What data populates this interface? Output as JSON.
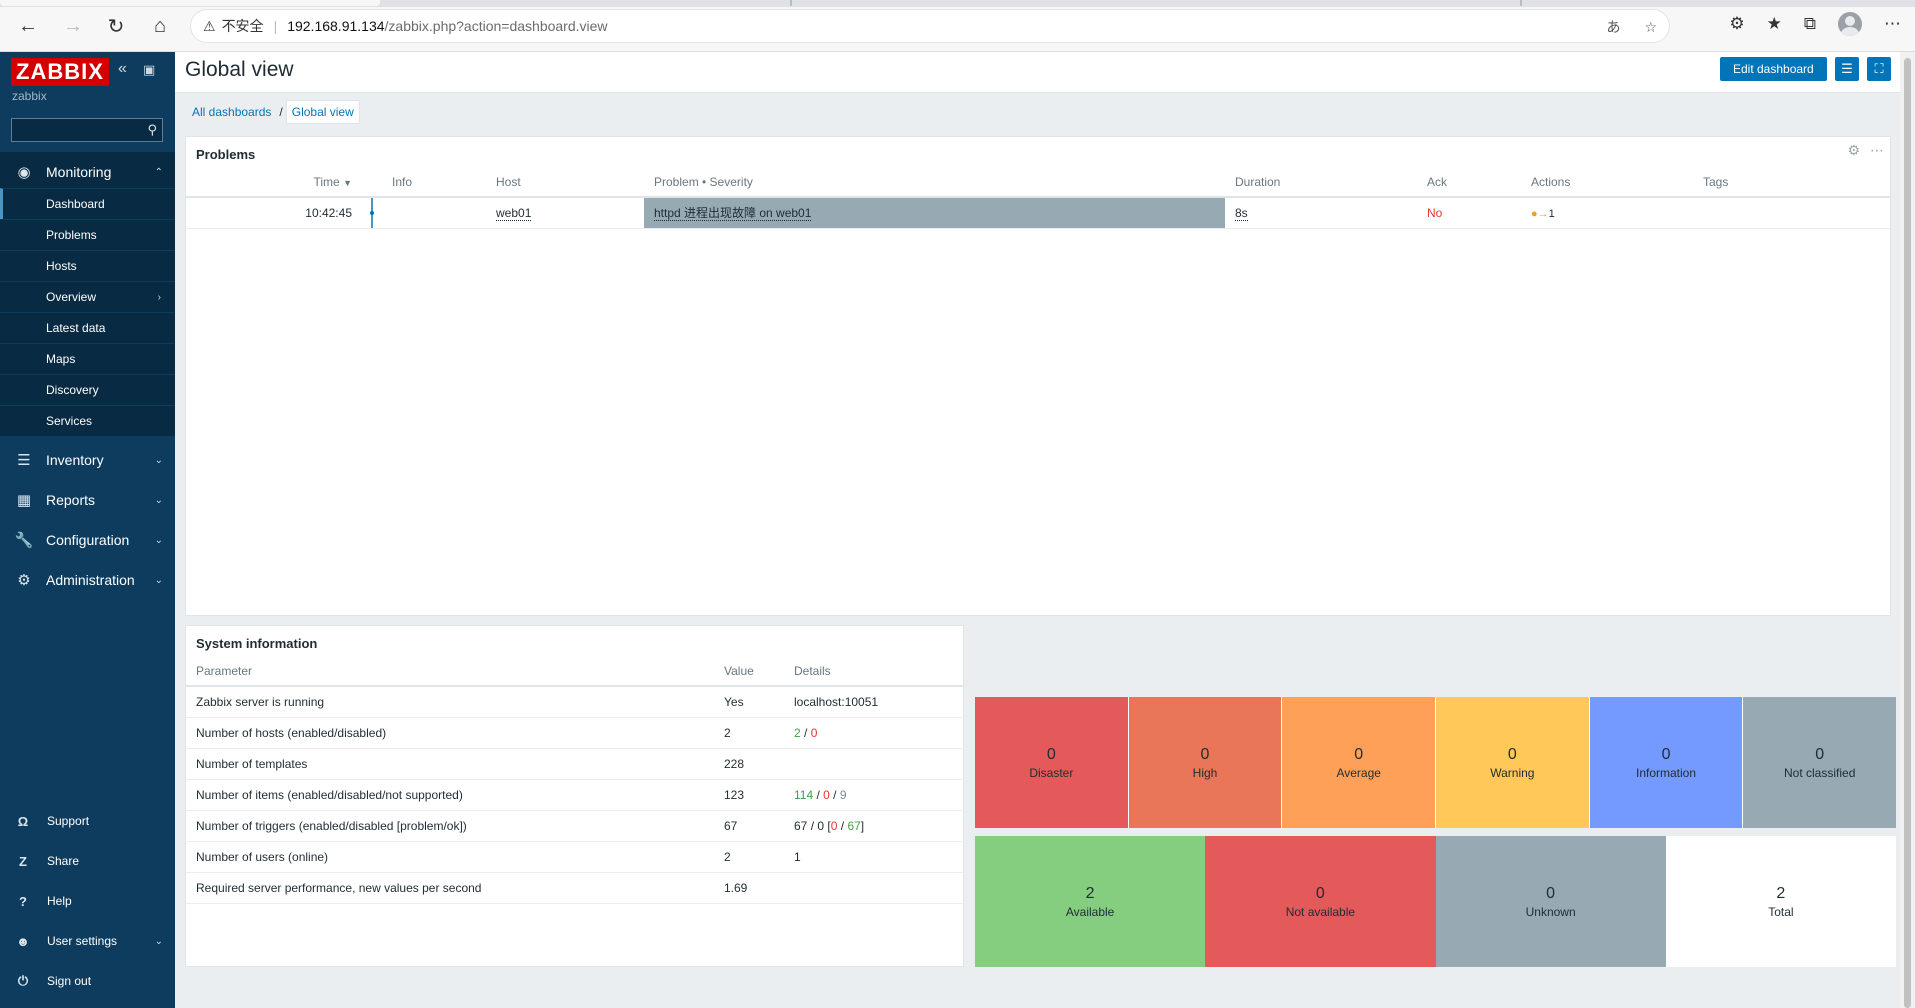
{
  "browser": {
    "security_warning": "不安全",
    "url_host": "192.168.91.134",
    "url_path": "/zabbix.php?action=dashboard.view"
  },
  "sidebar": {
    "logo": "ZABBIX",
    "server_name": "zabbix",
    "search_placeholder": "",
    "menu": [
      {
        "label": "Monitoring",
        "icon": "eye-icon"
      },
      {
        "label": "Inventory",
        "icon": "list-icon"
      },
      {
        "label": "Reports",
        "icon": "bar-chart-icon"
      },
      {
        "label": "Configuration",
        "icon": "wrench-icon"
      },
      {
        "label": "Administration",
        "icon": "gear-box-icon"
      }
    ],
    "monitoring_items": [
      "Dashboard",
      "Problems",
      "Hosts",
      "Overview",
      "Latest data",
      "Maps",
      "Discovery",
      "Services"
    ],
    "bottom": [
      {
        "label": "Support",
        "icon": "headset-icon"
      },
      {
        "label": "Share",
        "icon": "share-icon"
      },
      {
        "label": "Help",
        "icon": "help-icon"
      },
      {
        "label": "User settings",
        "icon": "user-icon"
      },
      {
        "label": "Sign out",
        "icon": "power-icon"
      }
    ]
  },
  "header": {
    "title": "Global view",
    "edit_button": "Edit dashboard"
  },
  "breadcrumbs": {
    "all": "All dashboards",
    "current": "Global view"
  },
  "problems_widget": {
    "title": "Problems",
    "columns": {
      "time": "Time",
      "info": "Info",
      "host": "Host",
      "problem": "Problem • Severity",
      "duration": "Duration",
      "ack": "Ack",
      "actions": "Actions",
      "tags": "Tags"
    },
    "rows": [
      {
        "time": "10:42:45",
        "info": "",
        "host": "web01",
        "problem": "httpd 进程出现故障 on web01",
        "duration": "8s",
        "ack": "No",
        "actions": "1",
        "tags": ""
      }
    ]
  },
  "sysinfo_widget": {
    "title": "System information",
    "columns": {
      "parameter": "Parameter",
      "value": "Value",
      "details": "Details"
    },
    "rows": [
      {
        "parameter": "Zabbix server is running",
        "value": "Yes",
        "details": "localhost:10051"
      },
      {
        "parameter": "Number of hosts (enabled/disabled)",
        "value": "2",
        "d1": "2",
        "d2": "0"
      },
      {
        "parameter": "Number of templates",
        "value": "228",
        "details": ""
      },
      {
        "parameter": "Number of items (enabled/disabled/not supported)",
        "value": "123",
        "d1": "114",
        "d2": "0",
        "d3": "9"
      },
      {
        "parameter": "Number of triggers (enabled/disabled [problem/ok])",
        "value": "67",
        "d1": "67",
        "d2": "0",
        "d3": "0",
        "d4": "67"
      },
      {
        "parameter": "Number of users (online)",
        "value": "2",
        "details": "1"
      },
      {
        "parameter": "Required server performance, new values per second",
        "value": "1.69",
        "details": ""
      }
    ]
  },
  "severity": [
    {
      "count": "0",
      "label": "Disaster",
      "color": "#e45959"
    },
    {
      "count": "0",
      "label": "High",
      "color": "#e97659"
    },
    {
      "count": "0",
      "label": "Average",
      "color": "#ffa059"
    },
    {
      "count": "0",
      "label": "Warning",
      "color": "#ffc859"
    },
    {
      "count": "0",
      "label": "Information",
      "color": "#7499ff"
    },
    {
      "count": "0",
      "label": "Not classified",
      "color": "#97aab3"
    }
  ],
  "availability": [
    {
      "count": "2",
      "label": "Available",
      "color": "#85cd7f"
    },
    {
      "count": "0",
      "label": "Not available",
      "color": "#e45959"
    },
    {
      "count": "0",
      "label": "Unknown",
      "color": "#97aab3"
    },
    {
      "count": "2",
      "label": "Total",
      "color": "#ffffff"
    }
  ]
}
